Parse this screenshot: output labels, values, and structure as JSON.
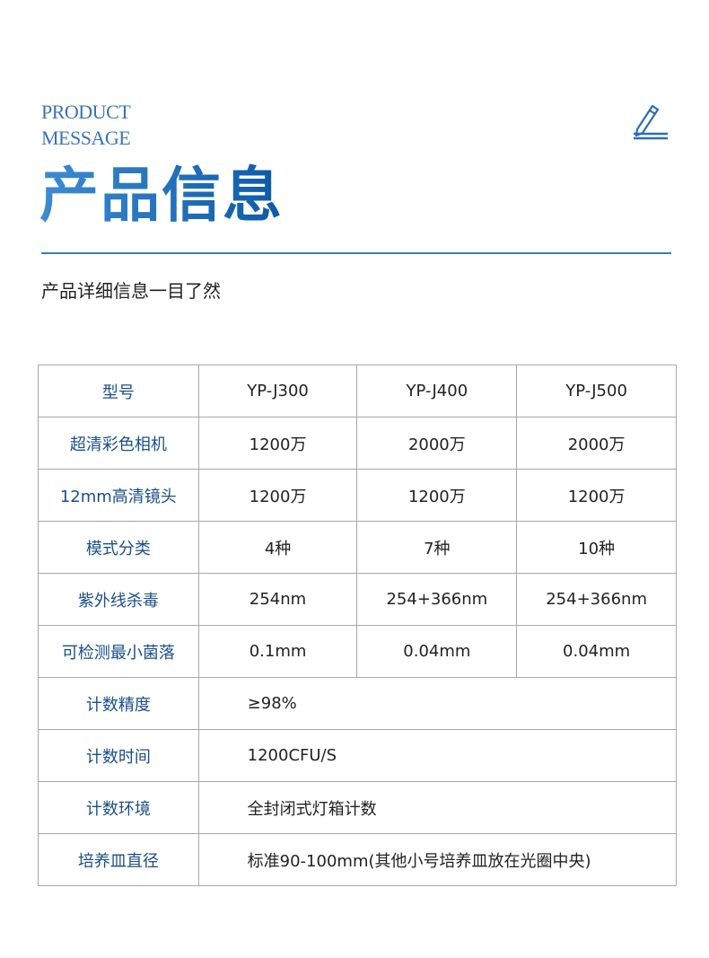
{
  "header": {
    "en_line1": "PRODUCT",
    "en_line2": "MESSAGE",
    "title": "产品信息",
    "subtitle": "产品详细信息一目了然",
    "icon": "pencil-icon",
    "accent": "#1f6ab8"
  },
  "table": {
    "rows": [
      {
        "label": "型号",
        "values": [
          "YP-J300",
          "YP-J400",
          "YP-J500"
        ]
      },
      {
        "label": "超清彩色相机",
        "values": [
          "1200万",
          "2000万",
          "2000万"
        ]
      },
      {
        "label": "12mm高清镜头",
        "values": [
          "1200万",
          "1200万",
          "1200万"
        ]
      },
      {
        "label": "模式分类",
        "values": [
          "4种",
          "7种",
          "10种"
        ]
      },
      {
        "label": "紫外线杀毒",
        "values": [
          "254nm",
          "254+366nm",
          "254+366nm"
        ]
      },
      {
        "label": "可检测最小菌落",
        "values": [
          "0.1mm",
          "0.04mm",
          "0.04mm"
        ]
      }
    ],
    "span_rows": [
      {
        "label": "计数精度",
        "value": "≥98%"
      },
      {
        "label": "计数时间",
        "value": "1200CFU/S"
      },
      {
        "label": "计数环境",
        "value": "全封闭式灯箱计数"
      },
      {
        "label": "培养皿直径",
        "value": "标准90-100mm(其他小号培养皿放在光圈中央)"
      }
    ]
  }
}
